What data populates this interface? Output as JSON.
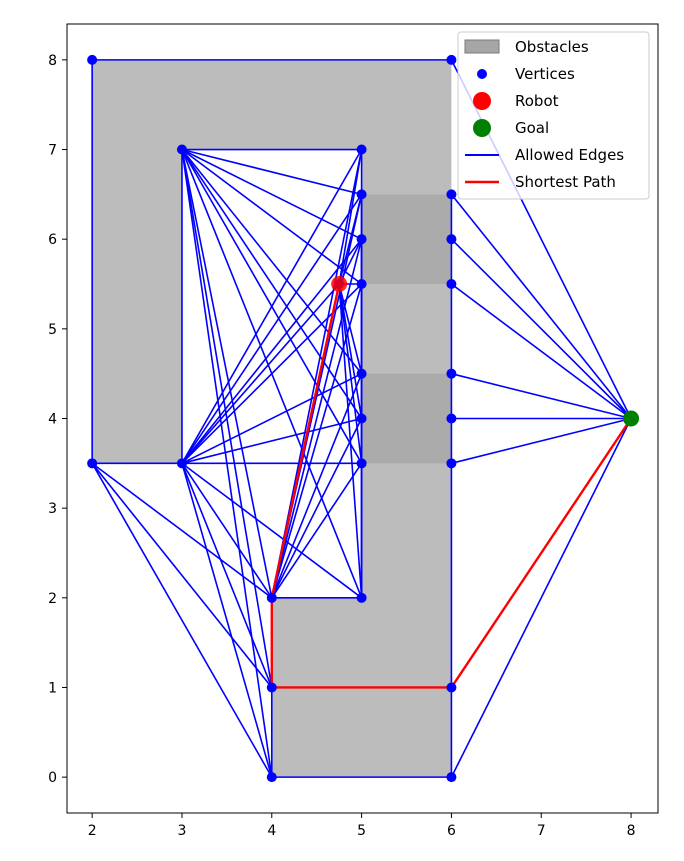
{
  "chart_data": {
    "type": "scatter",
    "title": "",
    "xlabel": "",
    "ylabel": "",
    "xlim": [
      1.72,
      8.3
    ],
    "ylim": [
      -0.4,
      8.4
    ],
    "xticks": [
      2,
      3,
      4,
      5,
      6,
      7,
      8
    ],
    "yticks": [
      0,
      1,
      2,
      3,
      4,
      5,
      6,
      7,
      8
    ],
    "grid": false,
    "legend_position": "top-right",
    "colors": {
      "obstacle_fill": "#a6a6a6",
      "vertex": "#0000ff",
      "edge": "#0000ff",
      "robot": "#ff0000",
      "goal": "#008000",
      "path": "#ff0000"
    },
    "obstacles": [
      [
        [
          2,
          3.5
        ],
        [
          2,
          8
        ],
        [
          6,
          8
        ],
        [
          6,
          6.5
        ],
        [
          5,
          6.5
        ],
        [
          5,
          7
        ],
        [
          3,
          7
        ],
        [
          3,
          3.5
        ]
      ],
      [
        [
          4,
          0
        ],
        [
          6,
          0
        ],
        [
          6,
          6.5
        ],
        [
          5,
          6.5
        ],
        [
          5,
          2
        ],
        [
          4,
          2
        ]
      ],
      [
        [
          5,
          5.5
        ],
        [
          6,
          5.5
        ],
        [
          6,
          6.5
        ],
        [
          5,
          6.5
        ]
      ],
      [
        [
          5,
          3.5
        ],
        [
          6,
          3.5
        ],
        [
          6,
          4.5
        ],
        [
          5,
          4.5
        ]
      ]
    ],
    "vertices": [
      [
        2,
        8
      ],
      [
        6,
        8
      ],
      [
        3,
        7
      ],
      [
        5,
        7
      ],
      [
        5,
        6.5
      ],
      [
        6,
        6.5
      ],
      [
        5,
        6
      ],
      [
        6,
        6
      ],
      [
        5,
        5.5
      ],
      [
        6,
        5.5
      ],
      [
        5,
        4.5
      ],
      [
        6,
        4.5
      ],
      [
        5,
        4
      ],
      [
        6,
        4
      ],
      [
        2,
        3.5
      ],
      [
        3,
        3.5
      ],
      [
        5,
        3.5
      ],
      [
        6,
        3.5
      ],
      [
        4,
        2
      ],
      [
        5,
        2
      ],
      [
        4,
        1
      ],
      [
        6,
        1
      ],
      [
        4,
        0
      ],
      [
        6,
        0
      ],
      [
        4.75,
        5.5
      ],
      [
        8,
        4
      ]
    ],
    "robot": [
      4.75,
      5.5
    ],
    "goal": [
      8,
      4
    ],
    "edges": [
      [
        [
          2,
          8
        ],
        [
          6,
          8
        ]
      ],
      [
        [
          2,
          8
        ],
        [
          2,
          3.5
        ]
      ],
      [
        [
          6,
          8
        ],
        [
          8,
          4
        ]
      ],
      [
        [
          3,
          7
        ],
        [
          5,
          7
        ]
      ],
      [
        [
          3,
          7
        ],
        [
          3,
          3.5
        ]
      ],
      [
        [
          2,
          3.5
        ],
        [
          3,
          3.5
        ]
      ],
      [
        [
          5,
          7
        ],
        [
          5,
          2
        ]
      ],
      [
        [
          4,
          2
        ],
        [
          5,
          2
        ]
      ],
      [
        [
          4,
          2
        ],
        [
          4,
          0
        ]
      ],
      [
        [
          4,
          0
        ],
        [
          6,
          0
        ]
      ],
      [
        [
          6,
          0
        ],
        [
          6,
          6.5
        ]
      ],
      [
        [
          4,
          1
        ],
        [
          6,
          1
        ]
      ],
      [
        [
          3,
          7
        ],
        [
          5,
          6.5
        ]
      ],
      [
        [
          3,
          7
        ],
        [
          5,
          6
        ]
      ],
      [
        [
          3,
          7
        ],
        [
          5,
          5.5
        ]
      ],
      [
        [
          3,
          7
        ],
        [
          5,
          4.5
        ]
      ],
      [
        [
          3,
          7
        ],
        [
          5,
          4
        ]
      ],
      [
        [
          3,
          7
        ],
        [
          5,
          3.5
        ]
      ],
      [
        [
          3,
          7
        ],
        [
          5,
          2
        ]
      ],
      [
        [
          3,
          7
        ],
        [
          4,
          2
        ]
      ],
      [
        [
          3,
          7
        ],
        [
          4,
          1
        ]
      ],
      [
        [
          3,
          7
        ],
        [
          4,
          0
        ]
      ],
      [
        [
          3,
          3.5
        ],
        [
          5,
          7
        ]
      ],
      [
        [
          3,
          3.5
        ],
        [
          5,
          6.5
        ]
      ],
      [
        [
          3,
          3.5
        ],
        [
          5,
          6
        ]
      ],
      [
        [
          3,
          3.5
        ],
        [
          5,
          5.5
        ]
      ],
      [
        [
          3,
          3.5
        ],
        [
          5,
          4.5
        ]
      ],
      [
        [
          3,
          3.5
        ],
        [
          5,
          4
        ]
      ],
      [
        [
          3,
          3.5
        ],
        [
          5,
          3.5
        ]
      ],
      [
        [
          3,
          3.5
        ],
        [
          5,
          2
        ]
      ],
      [
        [
          3,
          3.5
        ],
        [
          4,
          2
        ]
      ],
      [
        [
          3,
          3.5
        ],
        [
          4,
          1
        ]
      ],
      [
        [
          3,
          3.5
        ],
        [
          4,
          0
        ]
      ],
      [
        [
          3,
          3.5
        ],
        [
          4.75,
          5.5
        ]
      ],
      [
        [
          2,
          3.5
        ],
        [
          4,
          2
        ]
      ],
      [
        [
          2,
          3.5
        ],
        [
          4,
          1
        ]
      ],
      [
        [
          2,
          3.5
        ],
        [
          4,
          0
        ]
      ],
      [
        [
          4,
          2
        ],
        [
          5,
          7
        ]
      ],
      [
        [
          4,
          2
        ],
        [
          5,
          6.5
        ]
      ],
      [
        [
          4,
          2
        ],
        [
          5,
          6
        ]
      ],
      [
        [
          4,
          2
        ],
        [
          5,
          5.5
        ]
      ],
      [
        [
          4,
          2
        ],
        [
          5,
          4.5
        ]
      ],
      [
        [
          4,
          2
        ],
        [
          5,
          4
        ]
      ],
      [
        [
          4,
          2
        ],
        [
          5,
          3.5
        ]
      ],
      [
        [
          4.75,
          5.5
        ],
        [
          5,
          7
        ]
      ],
      [
        [
          4.75,
          5.5
        ],
        [
          5,
          6.5
        ]
      ],
      [
        [
          4.75,
          5.5
        ],
        [
          5,
          6
        ]
      ],
      [
        [
          4.75,
          5.5
        ],
        [
          5,
          5.5
        ]
      ],
      [
        [
          4.75,
          5.5
        ],
        [
          5,
          4.5
        ]
      ],
      [
        [
          4.75,
          5.5
        ],
        [
          5,
          4
        ]
      ],
      [
        [
          4.75,
          5.5
        ],
        [
          5,
          3.5
        ]
      ],
      [
        [
          4.75,
          5.5
        ],
        [
          5,
          2
        ]
      ],
      [
        [
          4.75,
          5.5
        ],
        [
          4,
          2
        ]
      ],
      [
        [
          5,
          6.5
        ],
        [
          5,
          2
        ]
      ],
      [
        [
          5,
          6
        ],
        [
          5,
          2
        ]
      ],
      [
        [
          5,
          6.5
        ],
        [
          5,
          3.5
        ]
      ],
      [
        [
          6,
          6.5
        ],
        [
          8,
          4
        ]
      ],
      [
        [
          6,
          6
        ],
        [
          8,
          4
        ]
      ],
      [
        [
          6,
          5.5
        ],
        [
          8,
          4
        ]
      ],
      [
        [
          6,
          4.5
        ],
        [
          8,
          4
        ]
      ],
      [
        [
          6,
          4
        ],
        [
          8,
          4
        ]
      ],
      [
        [
          6,
          3.5
        ],
        [
          8,
          4
        ]
      ],
      [
        [
          6,
          1
        ],
        [
          8,
          4
        ]
      ],
      [
        [
          6,
          0
        ],
        [
          8,
          4
        ]
      ]
    ],
    "shortest_path": [
      [
        4.75,
        5.5
      ],
      [
        4,
        2
      ],
      [
        4,
        1
      ],
      [
        6,
        1
      ],
      [
        8,
        4
      ]
    ],
    "legend": [
      {
        "label": "Obstacles",
        "kind": "patch"
      },
      {
        "label": "Vertices",
        "kind": "dot"
      },
      {
        "label": "Robot",
        "kind": "robot"
      },
      {
        "label": "Goal",
        "kind": "goal"
      },
      {
        "label": "Allowed Edges",
        "kind": "edge"
      },
      {
        "label": "Shortest Path",
        "kind": "path"
      }
    ]
  }
}
